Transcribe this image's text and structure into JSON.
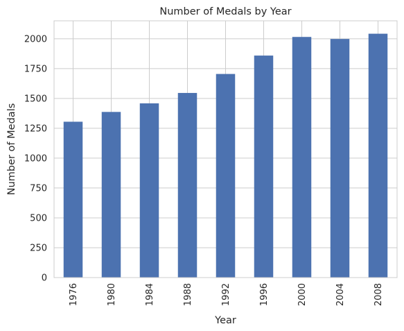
{
  "chart_data": {
    "type": "bar",
    "title": "Number of Medals by Year",
    "xlabel": "Year",
    "ylabel": "Number of Medals",
    "categories": [
      "1976",
      "1980",
      "1984",
      "1988",
      "1992",
      "1996",
      "2000",
      "2004",
      "2008"
    ],
    "values": [
      1305,
      1387,
      1459,
      1546,
      1705,
      1859,
      2015,
      1998,
      2042
    ],
    "ylim": [
      0,
      2150
    ],
    "yticks": [
      0,
      250,
      500,
      750,
      1000,
      1250,
      1500,
      1750,
      2000
    ],
    "grid": true,
    "x_tick_rotation": "vertical",
    "colors": {
      "bar": "#4c72b0",
      "grid": "#cccccc",
      "spine": "#cccccc",
      "text": "#262626"
    }
  }
}
